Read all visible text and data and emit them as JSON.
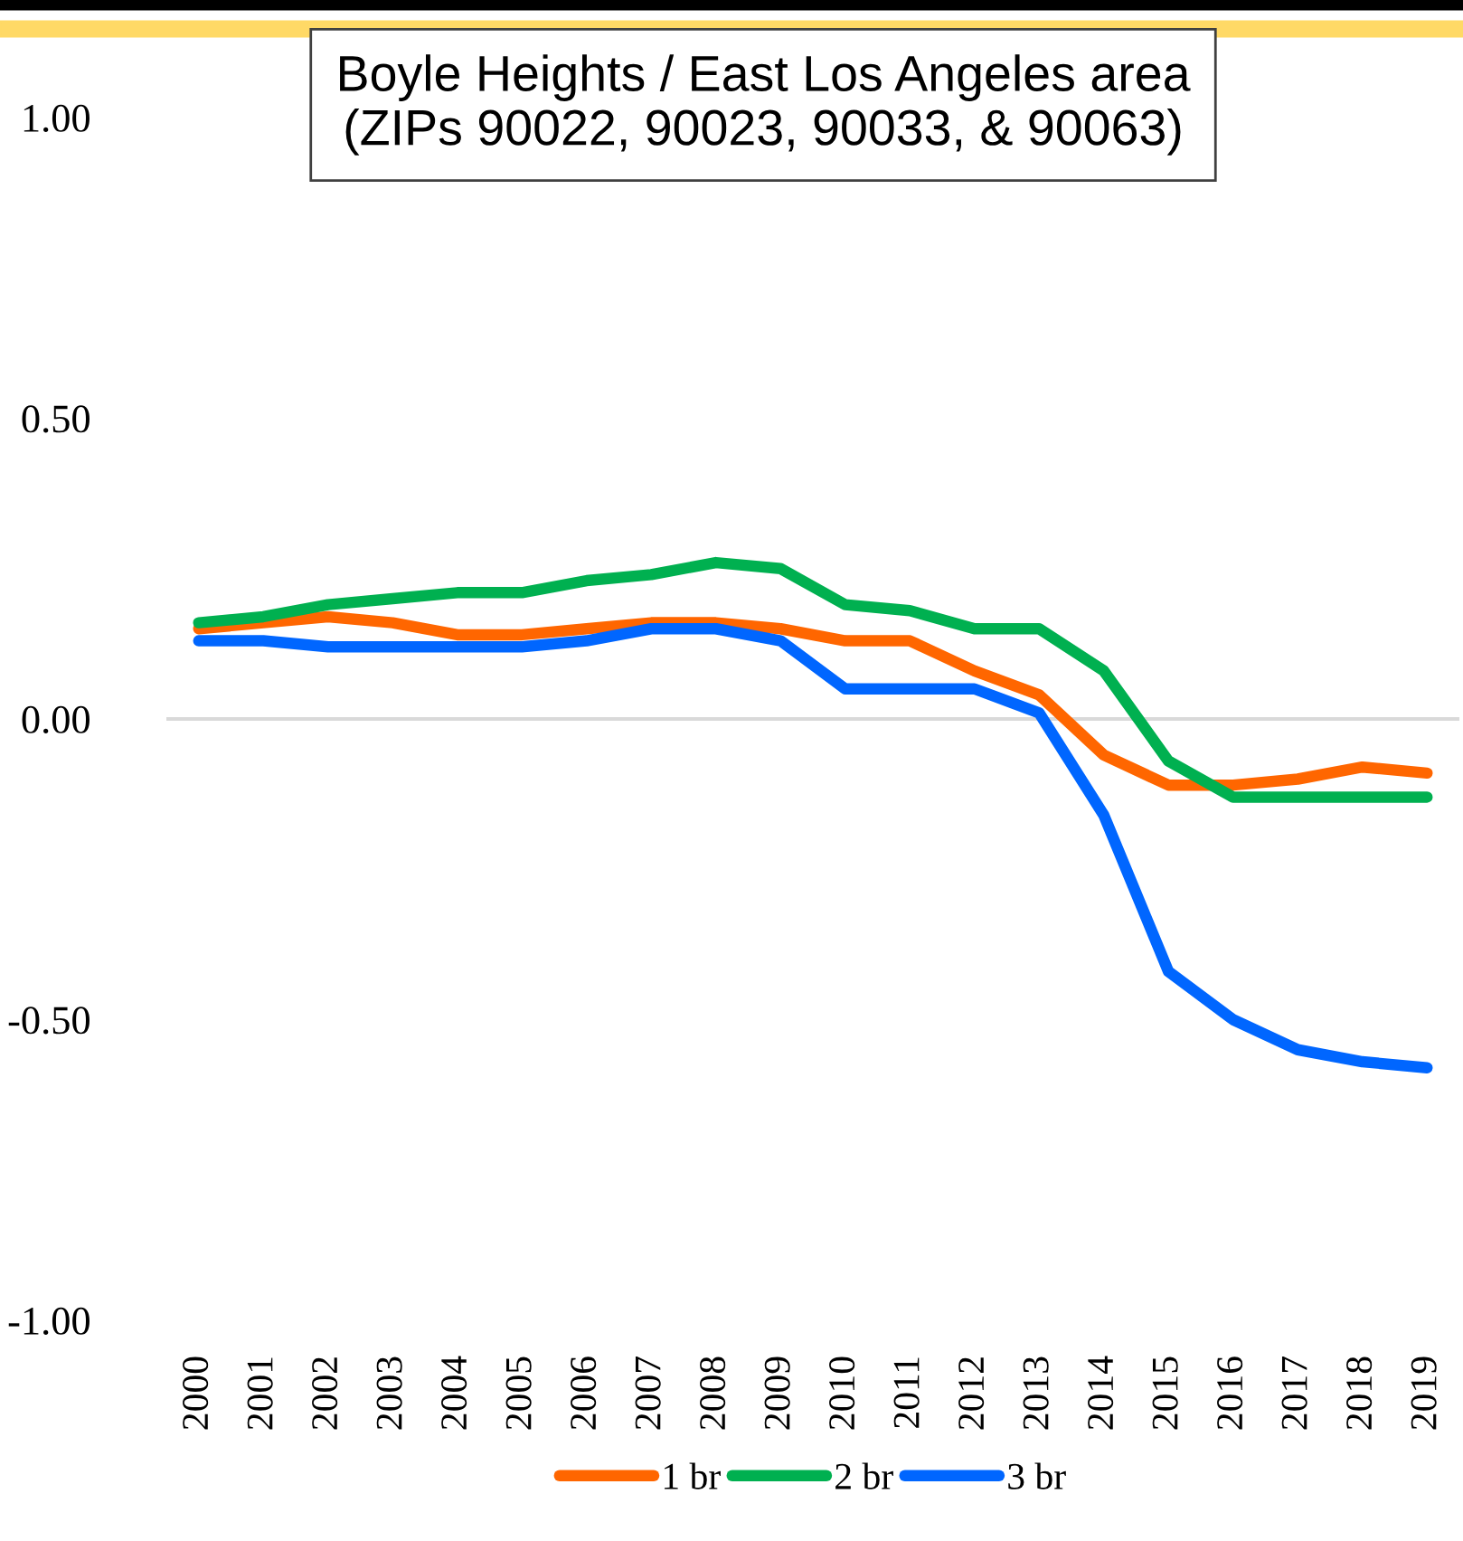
{
  "chart_data": {
    "type": "line",
    "title": "Boyle Heights / East Los Angeles area\n(ZIPs 90022, 90023, 90033, & 90063)",
    "categories": [
      "2000",
      "2001",
      "2002",
      "2003",
      "2004",
      "2005",
      "2006",
      "2007",
      "2008",
      "2009",
      "2010",
      "2011",
      "2012",
      "2013",
      "2014",
      "2015",
      "2016",
      "2017",
      "2018",
      "2019"
    ],
    "series": [
      {
        "name": "1 br",
        "color": "#ff6600",
        "values": [
          0.15,
          0.16,
          0.17,
          0.16,
          0.14,
          0.14,
          0.15,
          0.16,
          0.16,
          0.15,
          0.13,
          0.13,
          0.08,
          0.04,
          -0.06,
          -0.11,
          -0.11,
          -0.1,
          -0.08,
          -0.09
        ]
      },
      {
        "name": "2 br",
        "color": "#00b050",
        "values": [
          0.16,
          0.17,
          0.19,
          0.2,
          0.21,
          0.21,
          0.23,
          0.24,
          0.26,
          0.25,
          0.19,
          0.18,
          0.15,
          0.15,
          0.08,
          -0.07,
          -0.13,
          -0.13,
          -0.13,
          -0.13
        ]
      },
      {
        "name": "3 br",
        "color": "#0066ff",
        "values": [
          0.13,
          0.13,
          0.12,
          0.12,
          0.12,
          0.12,
          0.13,
          0.15,
          0.15,
          0.13,
          0.05,
          0.05,
          0.05,
          0.01,
          -0.16,
          -0.42,
          -0.5,
          -0.55,
          -0.57,
          -0.58
        ]
      }
    ],
    "ylim": [
      -1.0,
      1.0
    ],
    "yticks": [
      {
        "value": -1.0,
        "label": "-1.00"
      },
      {
        "value": -0.5,
        "label": "-0.50"
      },
      {
        "value": 0.0,
        "label": "0.00"
      },
      {
        "value": 0.5,
        "label": "0.50"
      },
      {
        "value": 1.0,
        "label": "1.00"
      }
    ],
    "ref_lines": [
      {
        "axis": "y",
        "value": 0,
        "color": "#d9d9d9"
      }
    ],
    "grid": false,
    "legend": "bottom",
    "marker": "none",
    "line_style": "solid"
  }
}
